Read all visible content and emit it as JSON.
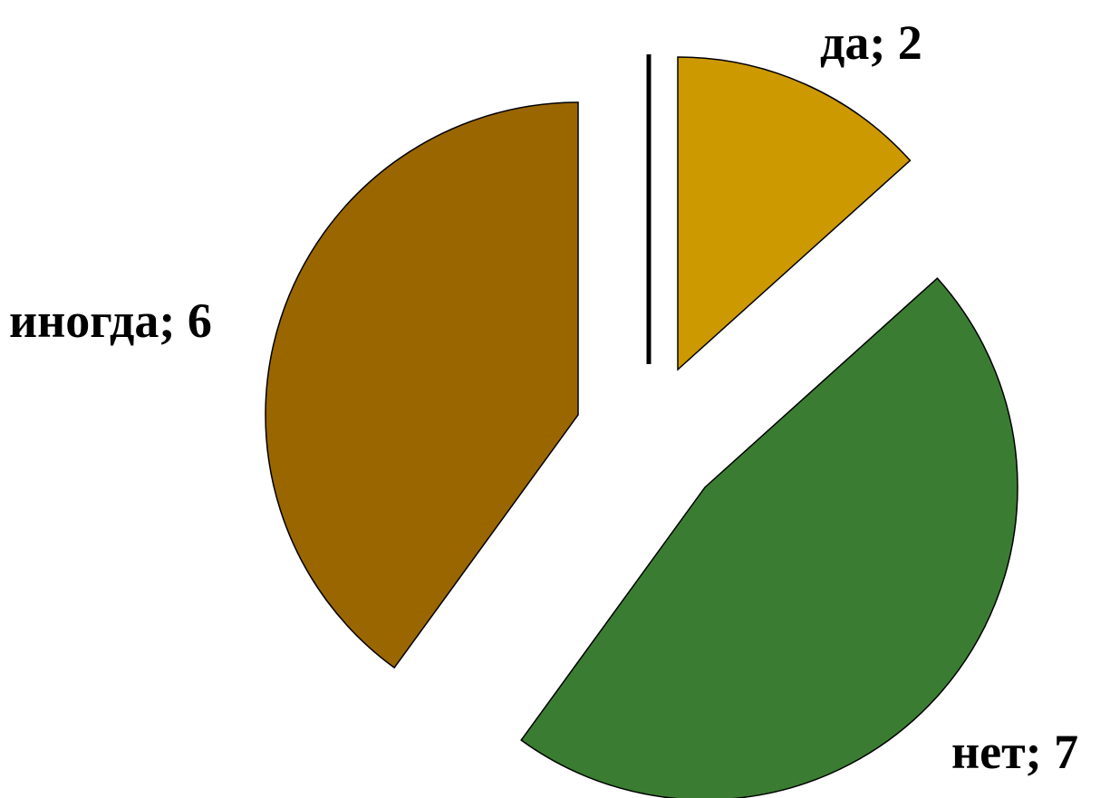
{
  "chart_data": {
    "type": "pie",
    "title": "",
    "slices": [
      {
        "label": "да",
        "value": 2,
        "text": "да; 2",
        "color": "#cc9900"
      },
      {
        "label": "нет",
        "value": 7,
        "text": "нет; 7",
        "color": "#3a7d32"
      },
      {
        "label": "иногда",
        "value": 6,
        "text": "иногда; 6",
        "color": "#996600"
      }
    ],
    "legend": "none",
    "exploded": true
  }
}
